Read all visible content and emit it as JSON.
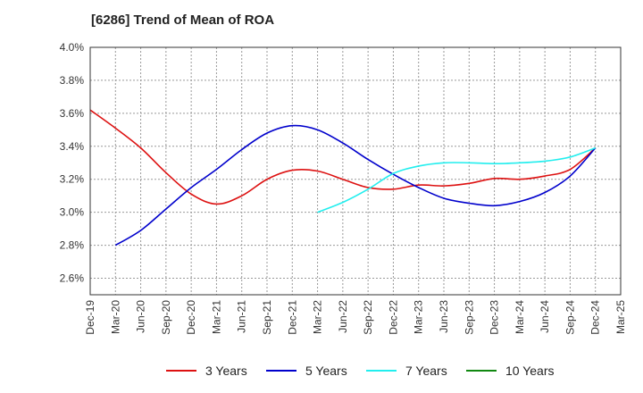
{
  "chart_data": {
    "type": "line",
    "title": "[6286]  Trend of Mean of ROA",
    "xlabel": "",
    "ylabel": "",
    "categories": [
      "Dec-19",
      "Mar-20",
      "Jun-20",
      "Sep-20",
      "Dec-20",
      "Mar-21",
      "Jun-21",
      "Sep-21",
      "Dec-21",
      "Mar-22",
      "Jun-22",
      "Sep-22",
      "Dec-22",
      "Mar-23",
      "Jun-23",
      "Sep-23",
      "Dec-23",
      "Mar-24",
      "Jun-24",
      "Sep-24",
      "Dec-24",
      "Mar-25"
    ],
    "ylim": [
      2.5,
      4.0
    ],
    "yticks": [
      "4.0%",
      "3.8%",
      "3.6%",
      "3.4%",
      "3.2%",
      "3.0%",
      "2.8%",
      "2.6%"
    ],
    "ytick_values": [
      4.0,
      3.8,
      3.6,
      3.4,
      3.2,
      3.0,
      2.8,
      2.6
    ],
    "grid": true,
    "legend_position": "bottom",
    "series": [
      {
        "name": "3 Years",
        "color": "#dd1111",
        "values": [
          3.62,
          3.51,
          3.39,
          3.24,
          3.11,
          3.05,
          3.1,
          3.2,
          3.255,
          3.25,
          3.2,
          3.15,
          3.14,
          3.165,
          3.16,
          3.175,
          3.205,
          3.2,
          3.22,
          3.26,
          3.39,
          null
        ]
      },
      {
        "name": "5 Years",
        "color": "#0000cc",
        "values": [
          null,
          2.8,
          2.89,
          3.02,
          3.15,
          3.26,
          3.38,
          3.48,
          3.525,
          3.5,
          3.42,
          3.32,
          3.23,
          3.15,
          3.085,
          3.055,
          3.04,
          3.065,
          3.12,
          3.22,
          3.39,
          null
        ]
      },
      {
        "name": "7 Years",
        "color": "#22eeee",
        "values": [
          null,
          null,
          null,
          null,
          null,
          null,
          null,
          null,
          null,
          3.0,
          3.06,
          3.14,
          3.235,
          3.28,
          3.3,
          3.3,
          3.295,
          3.3,
          3.31,
          3.335,
          3.39,
          null
        ]
      },
      {
        "name": "10 Years",
        "color": "#118811",
        "values": [
          null,
          null,
          null,
          null,
          null,
          null,
          null,
          null,
          null,
          null,
          null,
          null,
          null,
          null,
          null,
          null,
          null,
          null,
          null,
          null,
          null,
          null
        ]
      }
    ]
  }
}
